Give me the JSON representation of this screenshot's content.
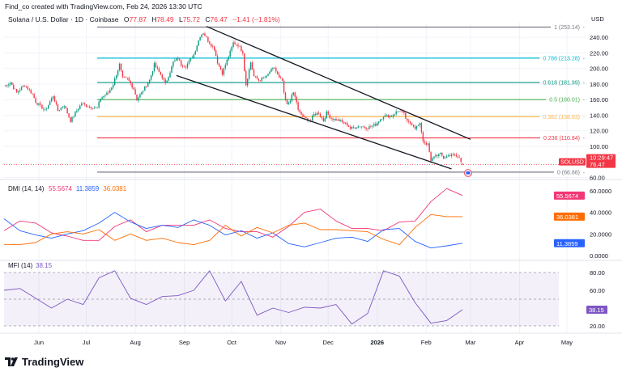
{
  "header": {
    "credit": "Find_co created with TradingView.com, Feb 24, 2026 13:30 UTC",
    "symbol_desc": "Solana / U.S. Dollar · 1D · Coinbase",
    "o_label": "O",
    "o": "77.87",
    "h_label": "H",
    "h": "78.49",
    "l_label": "L",
    "l": "75.72",
    "c_label": "C",
    "c": "76.47",
    "change": "−1.41 (−1.81%)"
  },
  "price_axis": {
    "currency": "USD",
    "ticks": [
      "240.00",
      "220.00",
      "200.00",
      "180.00",
      "160.00",
      "140.00",
      "120.00",
      "100.00",
      "60.00"
    ],
    "tick_values": [
      240,
      220,
      200,
      180,
      160,
      140,
      120,
      100,
      60
    ]
  },
  "last_price": {
    "symbol": "SOLUSD",
    "price": "76.47",
    "countdown": "10:29:47",
    "value": 76.47,
    "color": "#f23645"
  },
  "time_axis": {
    "labels": [
      "Jun",
      "Jul",
      "Aug",
      "Sep",
      "Oct",
      "Nov",
      "Dec",
      "2026",
      "Feb",
      "Mar",
      "Apr",
      "May"
    ],
    "dates": [
      "2025-06-01",
      "2025-07-01",
      "2025-08-01",
      "2025-09-01",
      "2025-10-01",
      "2025-11-01",
      "2025-12-01",
      "2026-01-01",
      "2026-02-01",
      "2026-03-01",
      "2026-04-01",
      "2026-05-01"
    ]
  },
  "fib_levels": [
    {
      "label": "1 (253.14)",
      "value": 253.14,
      "color": "#787b86"
    },
    {
      "label": "0.786 (213.28)",
      "value": 213.28,
      "color": "#00bcd4"
    },
    {
      "label": "0.618 (181.99)",
      "value": 181.99,
      "color": "#089981"
    },
    {
      "label": "0.5 (160.01)",
      "value": 160.01,
      "color": "#4caf50"
    },
    {
      "label": "0.382 (138.03)",
      "value": 138.03,
      "color": "#ffb74d"
    },
    {
      "label": "0.236 (110.84)",
      "value": 110.84,
      "color": "#f23645"
    },
    {
      "label": "0 (66.88)",
      "value": 66.88,
      "color": "#787b86"
    }
  ],
  "chart_data": [
    {
      "type": "candlestick",
      "title": "Solana / U.S. Dollar · 1D · Coinbase",
      "ylabel": "USD",
      "ylim": [
        56,
        266
      ],
      "colors": {
        "up": "#089981",
        "down": "#f23645"
      },
      "closes": [
        [
          "2025-05-10",
          177
        ],
        [
          "2025-05-14",
          182
        ],
        [
          "2025-05-18",
          169
        ],
        [
          "2025-05-23",
          179
        ],
        [
          "2025-05-28",
          167
        ],
        [
          "2025-05-30",
          157
        ],
        [
          "2025-06-05",
          146
        ],
        [
          "2025-06-10",
          165
        ],
        [
          "2025-06-13",
          146
        ],
        [
          "2025-06-17",
          153
        ],
        [
          "2025-06-21",
          133
        ],
        [
          "2025-06-25",
          146
        ],
        [
          "2025-06-28",
          155
        ],
        [
          "2025-07-03",
          151
        ],
        [
          "2025-07-08",
          149
        ],
        [
          "2025-07-10",
          162
        ],
        [
          "2025-07-15",
          169
        ],
        [
          "2025-07-18",
          180
        ],
        [
          "2025-07-22",
          205
        ],
        [
          "2025-07-24",
          187
        ],
        [
          "2025-07-27",
          187
        ],
        [
          "2025-07-31",
          174
        ],
        [
          "2025-08-02",
          160
        ],
        [
          "2025-08-05",
          169
        ],
        [
          "2025-08-10",
          185
        ],
        [
          "2025-08-13",
          205
        ],
        [
          "2025-08-18",
          189
        ],
        [
          "2025-08-20",
          180
        ],
        [
          "2025-08-23",
          196
        ],
        [
          "2025-08-25",
          208
        ],
        [
          "2025-08-28",
          213
        ],
        [
          "2025-08-30",
          205
        ],
        [
          "2025-09-02",
          203
        ],
        [
          "2025-09-07",
          218
        ],
        [
          "2025-09-11",
          242
        ],
        [
          "2025-09-13",
          246
        ],
        [
          "2025-09-16",
          236
        ],
        [
          "2025-09-20",
          225
        ],
        [
          "2025-09-22",
          208
        ],
        [
          "2025-09-25",
          194
        ],
        [
          "2025-09-27",
          205
        ],
        [
          "2025-09-30",
          221
        ],
        [
          "2025-10-02",
          233
        ],
        [
          "2025-10-05",
          230
        ],
        [
          "2025-10-08",
          221
        ],
        [
          "2025-10-09",
          198
        ],
        [
          "2025-10-10",
          179
        ],
        [
          "2025-10-13",
          208
        ],
        [
          "2025-10-15",
          190
        ],
        [
          "2025-10-18",
          185
        ],
        [
          "2025-10-23",
          189
        ],
        [
          "2025-10-25",
          196
        ],
        [
          "2025-10-28",
          201
        ],
        [
          "2025-10-31",
          187
        ],
        [
          "2025-11-02",
          184
        ],
        [
          "2025-11-03",
          167
        ],
        [
          "2025-11-05",
          153
        ],
        [
          "2025-11-07",
          160
        ],
        [
          "2025-11-09",
          169
        ],
        [
          "2025-11-11",
          157
        ],
        [
          "2025-11-12",
          146
        ],
        [
          "2025-11-16",
          136
        ],
        [
          "2025-11-20",
          133
        ],
        [
          "2025-11-22",
          141
        ],
        [
          "2025-11-25",
          143
        ],
        [
          "2025-11-28",
          133
        ],
        [
          "2025-11-30",
          143
        ],
        [
          "2025-12-03",
          136
        ],
        [
          "2025-12-08",
          133
        ],
        [
          "2025-12-13",
          128
        ],
        [
          "2025-12-15",
          123
        ],
        [
          "2025-12-21",
          126
        ],
        [
          "2025-12-26",
          124
        ],
        [
          "2025-12-31",
          128
        ],
        [
          "2026-01-02",
          133
        ],
        [
          "2026-01-05",
          139
        ],
        [
          "2026-01-10",
          139
        ],
        [
          "2026-01-13",
          144
        ],
        [
          "2026-01-15",
          146
        ],
        [
          "2026-01-18",
          141
        ],
        [
          "2026-01-20",
          131
        ],
        [
          "2026-01-23",
          129
        ],
        [
          "2026-01-25",
          124
        ],
        [
          "2026-01-28",
          128
        ],
        [
          "2026-01-29",
          119
        ],
        [
          "2026-01-30",
          107
        ],
        [
          "2026-02-02",
          102
        ],
        [
          "2026-02-03",
          92
        ],
        [
          "2026-02-04",
          80
        ],
        [
          "2026-02-06",
          88
        ],
        [
          "2026-02-10",
          90
        ],
        [
          "2026-02-12",
          85
        ],
        [
          "2026-02-15",
          88
        ],
        [
          "2026-02-17",
          90
        ],
        [
          "2026-02-20",
          87
        ],
        [
          "2026-02-22",
          85
        ],
        [
          "2026-02-24",
          76.47
        ]
      ],
      "trendlines": [
        {
          "from": [
            "2025-09-15",
            254
          ],
          "to": [
            "2026-03-01",
            109
          ]
        },
        {
          "from": [
            "2025-08-27",
            191
          ],
          "to": [
            "2026-02-17",
            71
          ]
        }
      ]
    },
    {
      "type": "line",
      "title": "DMI (14, 14)",
      "ylim": [
        -3,
        72
      ],
      "ticks": [
        "60.0000",
        "40.0000",
        "20.0000",
        "0.0000"
      ],
      "tick_values": [
        60,
        40,
        20,
        0
      ],
      "dates": [
        "2025-05-10",
        "2025-05-20",
        "2025-05-30",
        "2025-06-09",
        "2025-06-19",
        "2025-06-29",
        "2025-07-09",
        "2025-07-19",
        "2025-07-29",
        "2025-08-08",
        "2025-08-18",
        "2025-08-28",
        "2025-09-07",
        "2025-09-17",
        "2025-09-27",
        "2025-10-07",
        "2025-10-17",
        "2025-10-27",
        "2025-11-06",
        "2025-11-16",
        "2025-11-26",
        "2025-12-06",
        "2025-12-16",
        "2025-12-26",
        "2026-01-05",
        "2026-01-15",
        "2026-01-25",
        "2026-02-04",
        "2026-02-14",
        "2026-02-24"
      ],
      "series": [
        {
          "value_label": "55.5674",
          "color": "#f23674",
          "values": [
            23,
            32,
            30,
            21,
            18,
            14,
            14,
            27,
            33,
            22,
            28,
            28,
            28,
            33,
            25,
            22,
            22,
            17,
            27,
            40,
            43,
            32,
            25,
            25,
            23,
            31,
            32,
            50,
            62,
            55.5674
          ]
        },
        {
          "value_label": "11.3859",
          "color": "#2962ff",
          "values": [
            34,
            23,
            19,
            16,
            20,
            23,
            30,
            40,
            31,
            25,
            28,
            26,
            33,
            28,
            19,
            23,
            16,
            21,
            11,
            8,
            12,
            16,
            17,
            13,
            24,
            25,
            13,
            7,
            9,
            11.3859
          ]
        },
        {
          "value_label": "36.0381",
          "color": "#ff6d00",
          "values": [
            10,
            10,
            12,
            20,
            22,
            20,
            24,
            14,
            20,
            14,
            16,
            12,
            10,
            14,
            28,
            18,
            26,
            21,
            28,
            30,
            24,
            24,
            23,
            22,
            15,
            10,
            26,
            38,
            36,
            36.0381
          ]
        }
      ]
    },
    {
      "type": "line",
      "title": "MFI (14)",
      "ylim": [
        10,
        92
      ],
      "ticks": [
        "80.00",
        "60.00",
        "20.00"
      ],
      "tick_values": [
        80,
        60,
        20
      ],
      "bands": [
        80,
        50,
        20
      ],
      "dates": [
        "2025-05-10",
        "2025-05-20",
        "2025-05-30",
        "2025-06-09",
        "2025-06-19",
        "2025-06-29",
        "2025-07-09",
        "2025-07-19",
        "2025-07-29",
        "2025-08-08",
        "2025-08-18",
        "2025-08-28",
        "2025-09-07",
        "2025-09-17",
        "2025-09-27",
        "2025-10-07",
        "2025-10-17",
        "2025-10-27",
        "2025-11-06",
        "2025-11-16",
        "2025-11-26",
        "2025-12-06",
        "2025-12-16",
        "2025-12-26",
        "2026-01-05",
        "2026-01-15",
        "2026-01-25",
        "2026-02-04",
        "2026-02-14",
        "2026-02-24"
      ],
      "series": [
        {
          "value_label": "38.15",
          "color": "#7e57c2",
          "values": [
            60,
            62,
            51,
            40,
            50,
            44,
            74,
            82,
            51,
            44,
            53,
            54,
            60,
            82,
            48,
            70,
            32,
            40,
            35,
            41,
            40,
            44,
            22,
            34,
            82,
            76,
            46,
            23,
            26,
            38.15
          ]
        }
      ]
    }
  ],
  "branding": {
    "logo_text": "TradingView"
  }
}
